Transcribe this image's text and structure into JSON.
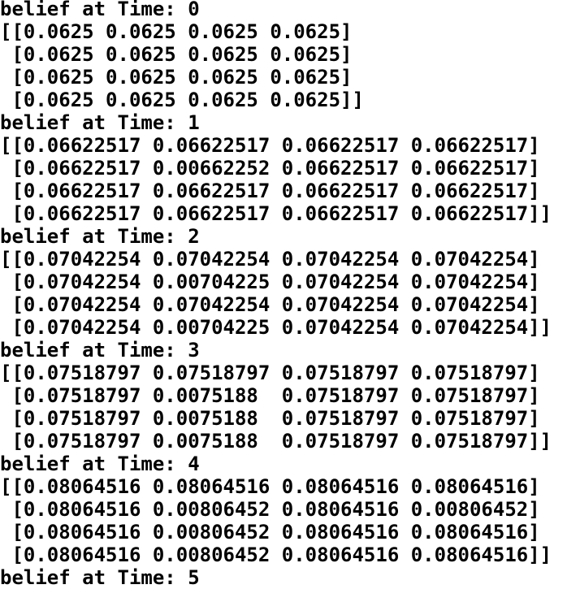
{
  "blocks": [
    {
      "heading": "belief at Time: 0",
      "rows": [
        "[[0.0625 0.0625 0.0625 0.0625]",
        " [0.0625 0.0625 0.0625 0.0625]",
        " [0.0625 0.0625 0.0625 0.0625]",
        " [0.0625 0.0625 0.0625 0.0625]]"
      ]
    },
    {
      "heading": "belief at Time: 1",
      "rows": [
        "[[0.06622517 0.06622517 0.06622517 0.06622517]",
        " [0.06622517 0.00662252 0.06622517 0.06622517]",
        " [0.06622517 0.06622517 0.06622517 0.06622517]",
        " [0.06622517 0.06622517 0.06622517 0.06622517]]"
      ]
    },
    {
      "heading": "belief at Time: 2",
      "rows": [
        "[[0.07042254 0.07042254 0.07042254 0.07042254]",
        " [0.07042254 0.00704225 0.07042254 0.07042254]",
        " [0.07042254 0.07042254 0.07042254 0.07042254]",
        " [0.07042254 0.00704225 0.07042254 0.07042254]]"
      ]
    },
    {
      "heading": "belief at Time: 3",
      "rows": [
        "[[0.07518797 0.07518797 0.07518797 0.07518797]",
        " [0.07518797 0.0075188  0.07518797 0.07518797]",
        " [0.07518797 0.0075188  0.07518797 0.07518797]",
        " [0.07518797 0.0075188  0.07518797 0.07518797]]"
      ]
    },
    {
      "heading": "belief at Time: 4",
      "rows": [
        "[[0.08064516 0.08064516 0.08064516 0.08064516]",
        " [0.08064516 0.00806452 0.08064516 0.00806452]",
        " [0.08064516 0.00806452 0.08064516 0.08064516]",
        " [0.08064516 0.00806452 0.08064516 0.08064516]]"
      ]
    },
    {
      "heading": "belief at Time: 5",
      "rows": []
    }
  ]
}
